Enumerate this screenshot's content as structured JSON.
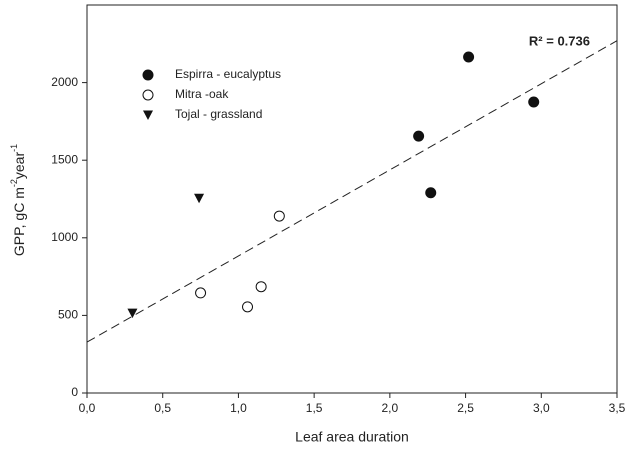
{
  "chart_data": {
    "type": "scatter",
    "xlabel": "Leaf area duration",
    "ylabel": [
      "GPP, gC m",
      "-2",
      "year",
      "-1"
    ],
    "annotation": "R² = 0.736",
    "xlim": [
      0,
      3.5
    ],
    "ylim": [
      0,
      2500
    ],
    "xticks": [
      {
        "value": 0,
        "label": "0,0"
      },
      {
        "value": 0.5,
        "label": "0,5"
      },
      {
        "value": 1,
        "label": "1,0"
      },
      {
        "value": 1.5,
        "label": "1,5"
      },
      {
        "value": 2,
        "label": "2,0"
      },
      {
        "value": 2.5,
        "label": "2,5"
      },
      {
        "value": 3,
        "label": "3,0"
      },
      {
        "value": 3.5,
        "label": "3,5"
      }
    ],
    "yticks": [
      0,
      500,
      1000,
      1500,
      2000
    ],
    "legend": "upper left",
    "series": [
      {
        "name": "Espirra - eucalyptus",
        "marker": "filled-circle",
        "color": "#111111",
        "x": [
          2.19,
          2.27,
          2.52,
          2.95
        ],
        "values": [
          1655,
          1290,
          2165,
          1875
        ]
      },
      {
        "name": "Mitra -oak",
        "marker": "open-circle",
        "color": "#111111",
        "x": [
          0.75,
          1.06,
          1.15,
          1.27
        ],
        "values": [
          645,
          555,
          685,
          1140
        ]
      },
      {
        "name": "Tojal - grassland",
        "marker": "triangle-down",
        "color": "#111111",
        "x": [
          0.3,
          0.74
        ],
        "values": [
          515,
          1255
        ]
      }
    ],
    "trendline": {
      "x": [
        0,
        3.5
      ],
      "values": [
        328,
        2270
      ]
    }
  }
}
